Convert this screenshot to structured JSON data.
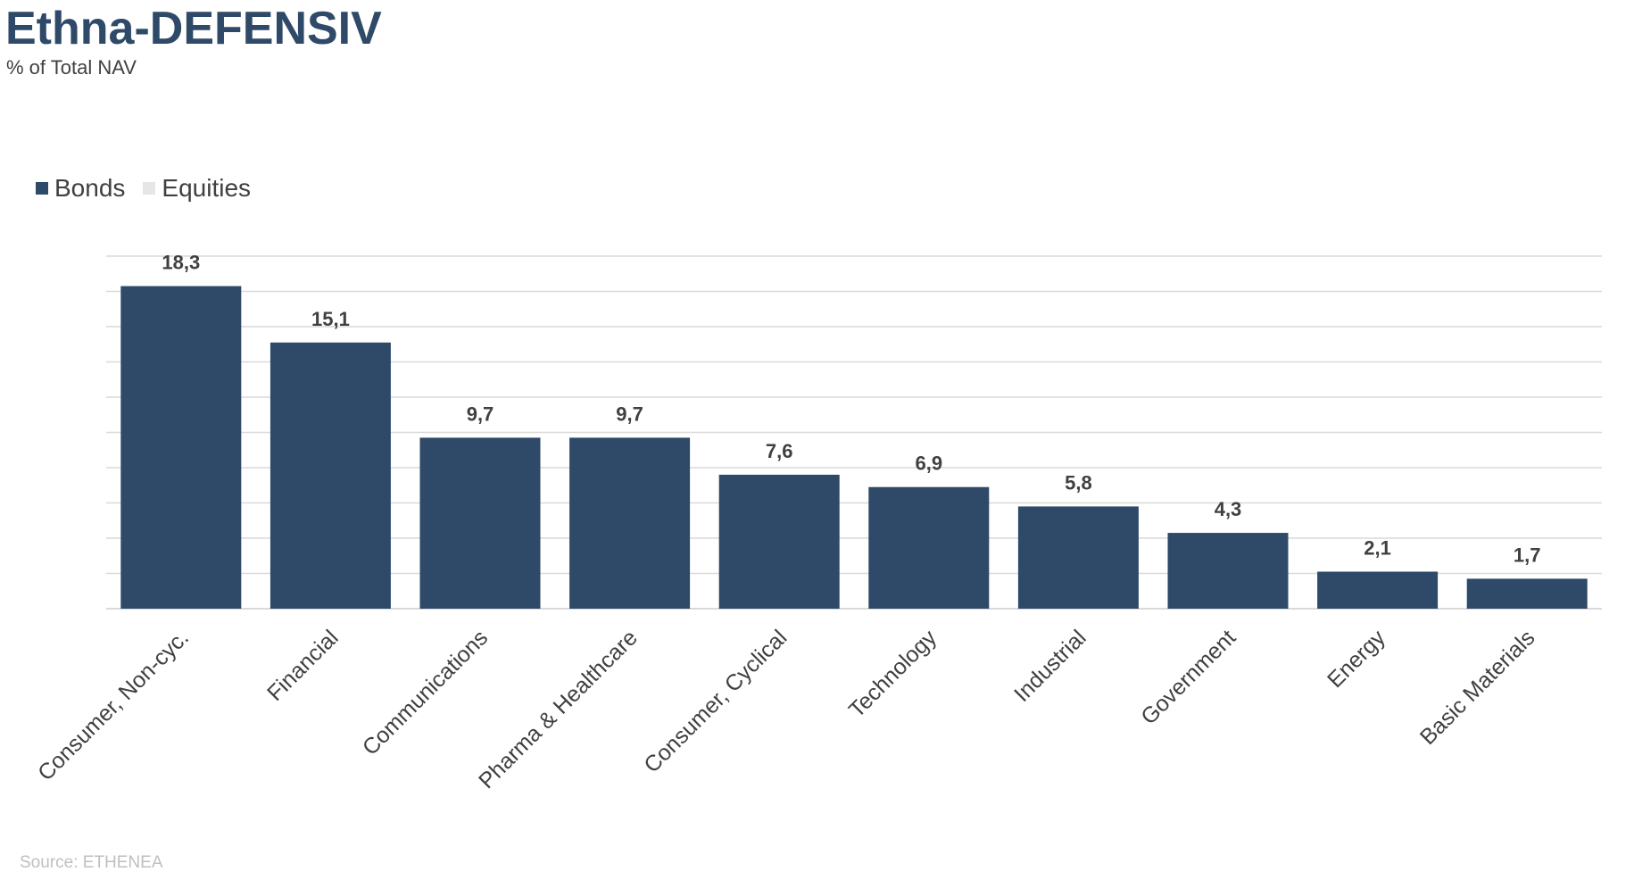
{
  "colors": {
    "title": "#2e4a68",
    "bonds": "#2e4a68",
    "equities": "#e6e6e6",
    "grid": "#d9d9d9",
    "label": "#404040",
    "source": "#bfbfbf"
  },
  "title": "Ethna-DEFENSIV",
  "subtitle": "% of Total NAV",
  "legend": [
    {
      "name": "Bonds",
      "color": "#2e4a68"
    },
    {
      "name": "Equities",
      "color": "#e6e6e6"
    }
  ],
  "chart_data": {
    "type": "bar",
    "categories": [
      "Consumer, Non-cyc.",
      "Financial",
      "Communications",
      "Pharma & Healthcare",
      "Consumer, Cyclical",
      "Technology",
      "Industrial",
      "Government",
      "Energy",
      "Basic Materials"
    ],
    "series": [
      {
        "name": "Bonds",
        "values": [
          18.3,
          15.1,
          9.7,
          9.7,
          7.6,
          6.9,
          5.8,
          4.3,
          2.1,
          1.7
        ]
      },
      {
        "name": "Equities",
        "values": [
          0,
          0,
          0,
          0,
          0,
          0,
          0,
          0,
          0,
          0
        ]
      }
    ],
    "data_labels": [
      "18,3",
      "15,1",
      "9,7",
      "9,7",
      "7,6",
      "6,9",
      "5,8",
      "4,3",
      "2,1",
      "1,7"
    ],
    "ylim": [
      0,
      20
    ],
    "grid": true,
    "legend_position": "top-left"
  },
  "source": "Source: ETHENEA"
}
